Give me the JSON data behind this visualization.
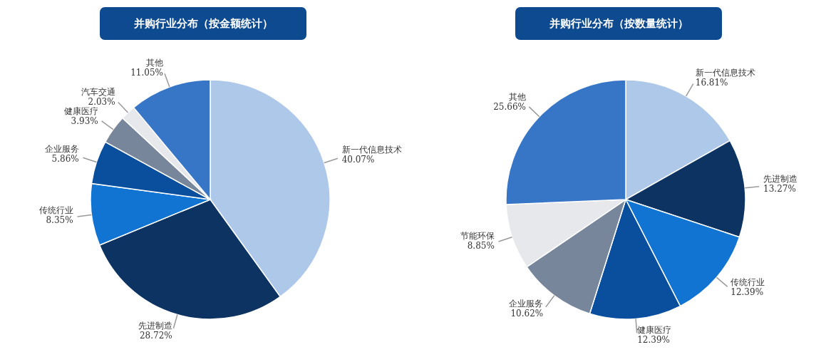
{
  "chart_data": [
    {
      "type": "pie",
      "title": "并购行业分布（按金额统计）",
      "categories": [
        "新一代信息技术",
        "先进制造",
        "传统行业",
        "企业服务",
        "健康医疗",
        "汽车交通",
        "其他"
      ],
      "values": [
        40.07,
        28.72,
        8.35,
        5.86,
        3.93,
        2.03,
        11.05
      ],
      "value_labels": [
        "40.07%",
        "28.72%",
        "8.35%",
        "5.86%",
        "3.93%",
        "2.03%",
        "11.05%"
      ],
      "colors": [
        "#aec8ea",
        "#0c3361",
        "#1174d2",
        "#0a4e9e",
        "#77869a",
        "#e6e8eb",
        "#3776c6"
      ]
    },
    {
      "type": "pie",
      "title": "并购行业分布（按数量统计）",
      "categories": [
        "新一代信息技术",
        "先进制造",
        "传统行业",
        "健康医疗",
        "企业服务",
        "节能环保",
        "其他"
      ],
      "values": [
        16.81,
        13.27,
        12.39,
        12.39,
        10.62,
        8.85,
        25.66
      ],
      "value_labels": [
        "16.81%",
        "13.27%",
        "12.39%",
        "12.39%",
        "10.62%",
        "8.85%",
        "25.66%"
      ],
      "colors": [
        "#aec8ea",
        "#0c3361",
        "#1174d2",
        "#0a4e9e",
        "#77869a",
        "#e6e8eb",
        "#3776c6"
      ]
    }
  ]
}
